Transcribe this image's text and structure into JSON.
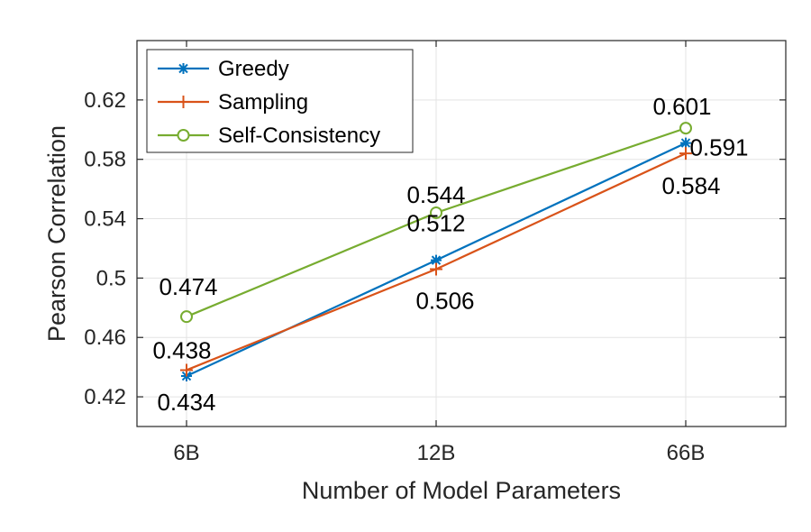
{
  "chart_data": {
    "type": "line",
    "title": "",
    "xlabel": "Number of Model Parameters",
    "ylabel": "Pearson Correlation",
    "categories": [
      "6B",
      "12B",
      "66B"
    ],
    "ylim": [
      0.4,
      0.66
    ],
    "yticks": [
      0.42,
      0.46,
      0.5,
      0.54,
      0.58,
      0.62
    ],
    "ytick_labels": [
      "0.42",
      "0.46",
      "0.5",
      "0.54",
      "0.58",
      "0.62"
    ],
    "grid": true,
    "legend_position": "top-left",
    "series": [
      {
        "name": "Greedy",
        "values": [
          0.434,
          0.512,
          0.591
        ],
        "labels": [
          "0.434",
          "0.512",
          "0.591"
        ],
        "color": "#0072BD",
        "marker": "asterisk"
      },
      {
        "name": "Sampling",
        "values": [
          0.438,
          0.506,
          0.584
        ],
        "labels": [
          "0.438",
          "0.506",
          "0.584"
        ],
        "color": "#D95319",
        "marker": "plus"
      },
      {
        "name": "Self-Consistency",
        "values": [
          0.474,
          0.544,
          0.601
        ],
        "labels": [
          "0.474",
          "0.544",
          "0.601"
        ],
        "color": "#77AC30",
        "marker": "circle"
      }
    ]
  }
}
